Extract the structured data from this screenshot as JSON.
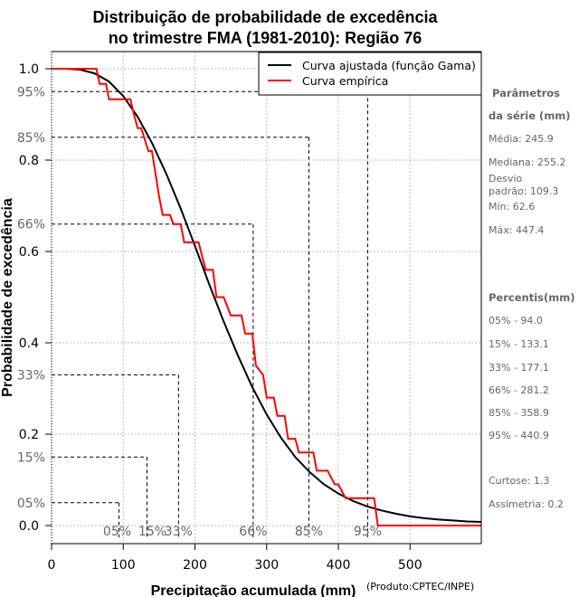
{
  "chart_data": {
    "type": "line",
    "title": "Distribuição de probabilidade de excedência",
    "subtitle": "no trimestre FMA (1981-2010): Região 76",
    "xlabel": "Precipitação acumulada (mm)",
    "ylabel": "Probabilidade de excedência",
    "xlim": [
      0,
      600
    ],
    "ylim": [
      0,
      1
    ],
    "x_ticks": [
      0,
      100,
      200,
      300,
      400,
      500
    ],
    "y_ticks": [
      0.0,
      0.2,
      0.4,
      0.6,
      0.8,
      1.0
    ],
    "y_tick_labels": [
      "0.0",
      "0.2",
      "0.4",
      "0.6",
      "0.8",
      "1.0"
    ],
    "grid": true,
    "legend_position": "top-right",
    "series": [
      {
        "name": "Curva ajustada (função Gama)",
        "color": "#000000",
        "style": "smooth",
        "x": [
          0,
          20,
          40,
          60,
          80,
          100,
          120,
          140,
          160,
          180,
          200,
          220,
          240,
          260,
          280,
          300,
          320,
          340,
          360,
          380,
          400,
          420,
          440,
          460,
          480,
          500,
          520,
          540,
          560,
          580,
          600
        ],
        "y": [
          1.0,
          1.0,
          0.998,
          0.99,
          0.972,
          0.94,
          0.895,
          0.838,
          0.77,
          0.694,
          0.612,
          0.528,
          0.447,
          0.372,
          0.303,
          0.243,
          0.192,
          0.15,
          0.117,
          0.09,
          0.07,
          0.054,
          0.042,
          0.033,
          0.026,
          0.02,
          0.016,
          0.013,
          0.011,
          0.009,
          0.008
        ]
      },
      {
        "name": "Curva empírica",
        "color": "#ff0000",
        "style": "step",
        "x": [
          0,
          62.6,
          67,
          76,
          80,
          85,
          110,
          115,
          120,
          125,
          135,
          140,
          150,
          155,
          165,
          170,
          180,
          185,
          205,
          210,
          215,
          225,
          230,
          240,
          250,
          265,
          270,
          280,
          285,
          295,
          300,
          310,
          315,
          325,
          330,
          340,
          345,
          355,
          365,
          370,
          380,
          385,
          395,
          400,
          410,
          450,
          455,
          600
        ],
        "y": [
          1.0,
          1.0,
          0.967,
          0.967,
          0.933,
          0.933,
          0.933,
          0.9,
          0.87,
          0.87,
          0.82,
          0.82,
          0.72,
          0.68,
          0.68,
          0.66,
          0.66,
          0.62,
          0.62,
          0.59,
          0.56,
          0.56,
          0.5,
          0.5,
          0.46,
          0.46,
          0.42,
          0.42,
          0.35,
          0.33,
          0.28,
          0.28,
          0.24,
          0.24,
          0.19,
          0.19,
          0.16,
          0.16,
          0.16,
          0.12,
          0.12,
          0.12,
          0.09,
          0.09,
          0.06,
          0.06,
          0.0,
          0.0
        ]
      }
    ],
    "percentile_lines": [
      {
        "label": "05%",
        "prob": 0.05,
        "value": 94.0
      },
      {
        "label": "15%",
        "prob": 0.15,
        "value": 133.1
      },
      {
        "label": "33%",
        "prob": 0.33,
        "value": 177.1
      },
      {
        "label": "66%",
        "prob": 0.66,
        "value": 281.2
      },
      {
        "label": "85%",
        "prob": 0.85,
        "value": 358.9
      },
      {
        "label": "95%",
        "prob": 0.95,
        "value": 440.9
      }
    ],
    "y_percent_labels": [
      "95%",
      "85%",
      "66%",
      "33%",
      "15%",
      "05%"
    ]
  },
  "side_panel": {
    "params_title_1": "Parâmetros",
    "params_title_2": "da série (mm)",
    "media": "Média: 245.9",
    "mediana": "Mediana: 255.2",
    "desvio_1": "Desvio",
    "desvio_2": "padrão: 109.3",
    "min": "Mín: 62.6",
    "max": "Máx: 447.4",
    "percentis_title": "Percentis(mm)",
    "percentis": [
      "05% - 94.0",
      "15% - 133.1",
      "33% - 177.1",
      "66% - 281.2",
      "85% - 358.9",
      "95% - 440.9"
    ],
    "curtose": "Curtose: 1.3",
    "assimetria": "Assimetria: 0.2"
  },
  "credit": "(Produto:CPTEC/INPE)"
}
